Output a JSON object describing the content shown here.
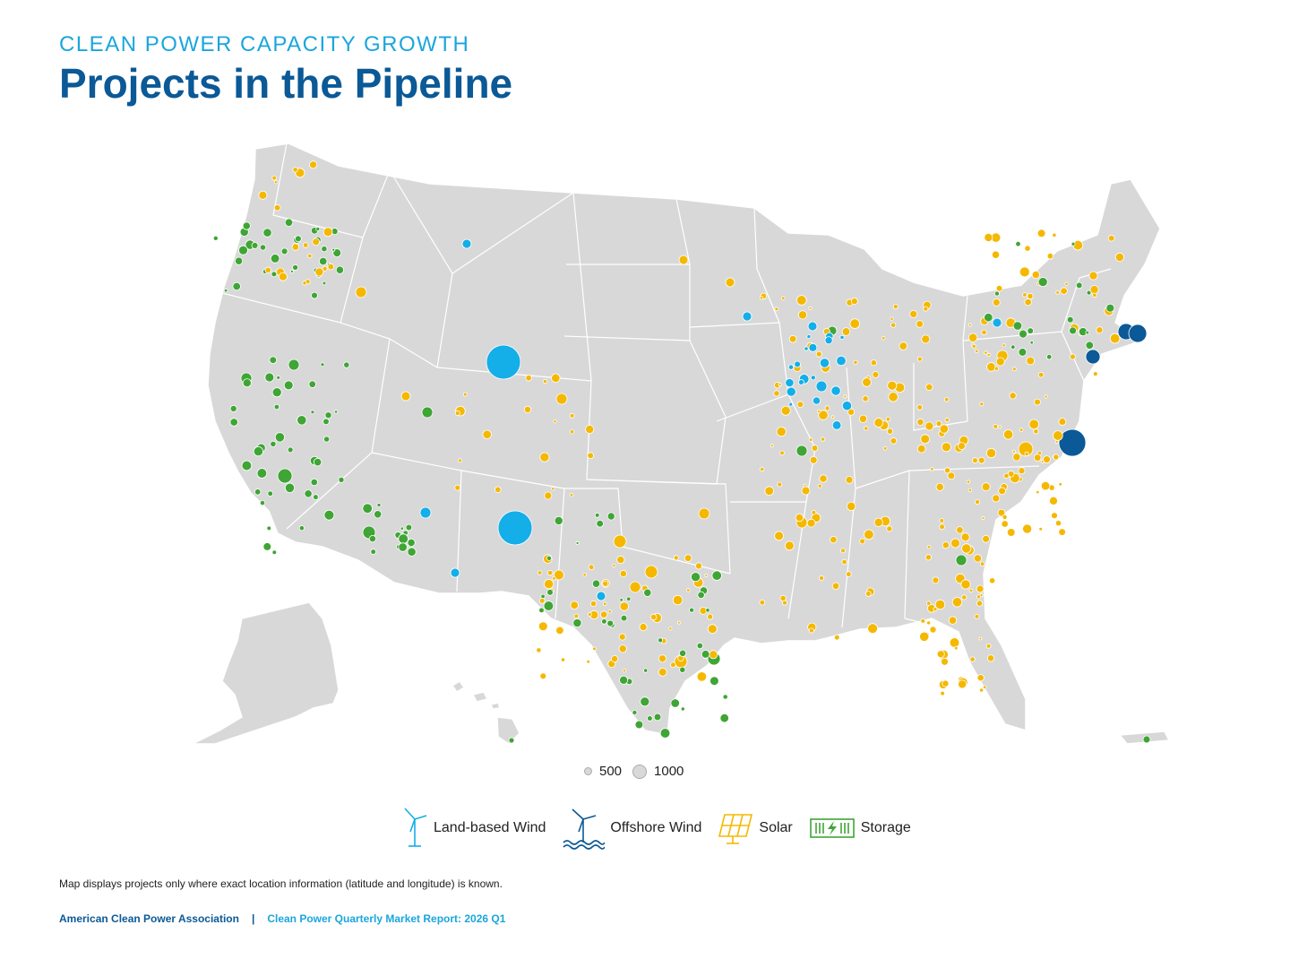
{
  "header": {
    "eyebrow": "CLEAN POWER CAPACITY GROWTH",
    "title": "Projects in the Pipeline"
  },
  "colors": {
    "land_wind": "#14aee8",
    "offshore_wind": "#0b5996",
    "solar": "#f5b800",
    "storage": "#3fa535",
    "land": "#d8d8d8"
  },
  "size_legend": [
    {
      "label": "500"
    },
    {
      "label": "1000"
    }
  ],
  "type_legend": [
    {
      "label": "Land-based Wind",
      "icon": "land-wind-turbine-icon",
      "key": "land_wind"
    },
    {
      "label": "Offshore Wind",
      "icon": "offshore-wind-turbine-icon",
      "key": "offshore_wind"
    },
    {
      "label": "Solar",
      "icon": "solar-panel-icon",
      "key": "solar"
    },
    {
      "label": "Storage",
      "icon": "battery-storage-icon",
      "key": "storage"
    }
  ],
  "note": "Map displays projects only where exact location information (latitude and longitude) is known.",
  "footer": {
    "org": "American Clean Power Association",
    "separator": "|",
    "report": "Clean Power Quarterly Market Report: 2026 Q1"
  }
}
